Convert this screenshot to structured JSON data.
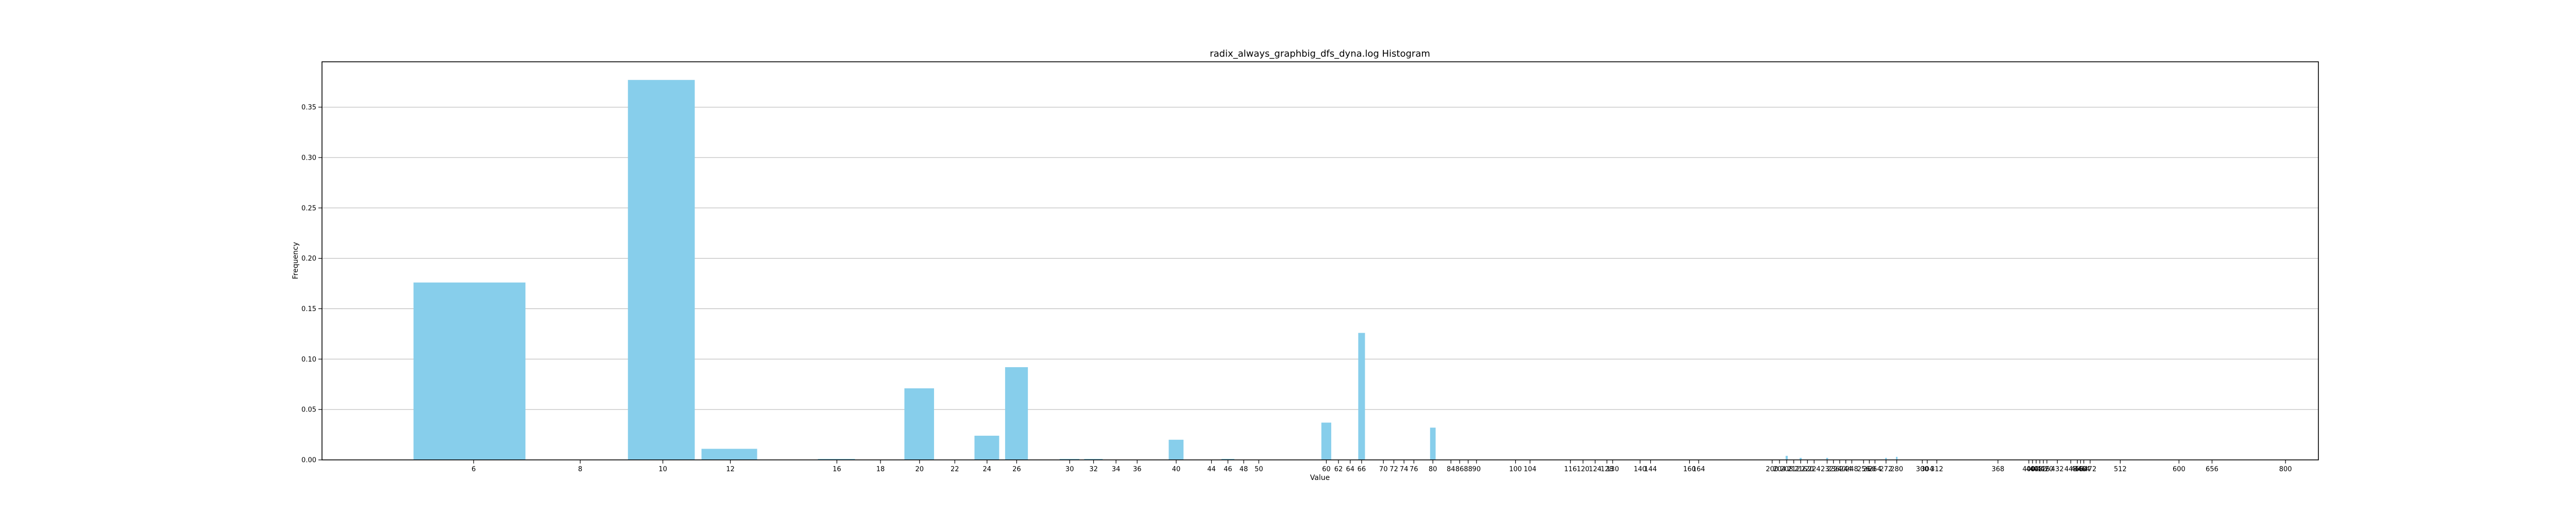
{
  "chart_data": {
    "type": "bar",
    "title": "radix_always_graphbig_dfs_dyna.log Histogram",
    "xlabel": "Value",
    "ylabel": "Frequency",
    "ylim": [
      0,
      0.395
    ],
    "xlim_log2": [
      1.994,
      9.772
    ],
    "x_scale": "log2",
    "grid": "horizontal",
    "bar_color": "#87ceeb",
    "yticks": [
      0.0,
      0.05,
      0.1,
      0.15,
      0.2,
      0.25,
      0.3,
      0.35
    ],
    "ytick_labels": [
      "0.00",
      "0.05",
      "0.10",
      "0.15",
      "0.20",
      "0.25",
      "0.30",
      "0.35"
    ],
    "xticks": [
      6,
      8,
      10,
      12,
      16,
      18,
      20,
      22,
      24,
      26,
      30,
      32,
      34,
      36,
      40,
      44,
      46,
      48,
      50,
      60,
      62,
      64,
      66,
      70,
      72,
      74,
      76,
      80,
      84,
      86,
      88,
      90,
      100,
      104,
      116,
      120,
      124,
      128,
      130,
      140,
      144,
      160,
      164,
      200,
      204,
      208,
      212,
      216,
      220,
      224,
      232,
      236,
      240,
      244,
      248,
      256,
      260,
      264,
      272,
      280,
      300,
      304,
      312,
      368,
      400,
      404,
      408,
      412,
      416,
      420,
      432,
      448,
      456,
      460,
      464,
      472,
      512,
      600,
      656,
      800
    ],
    "xtick_labels": [
      "6",
      "8",
      "10",
      "12",
      "16",
      "18",
      "20",
      "22",
      "24",
      "26",
      "30",
      "32",
      "34",
      "36",
      "40",
      "44",
      "46",
      "48",
      "50",
      "60",
      "62",
      "64",
      "66",
      "70",
      "72",
      "74",
      "76",
      "80",
      "84",
      "86",
      "88",
      "90",
      "100",
      "104",
      "116",
      "120",
      "124",
      "128",
      "130",
      "140",
      "144",
      "160",
      "164",
      "200",
      "204",
      "208",
      "212",
      "216",
      "220",
      "224",
      "232",
      "236",
      "240",
      "244",
      "248",
      "256",
      "260",
      "264",
      "272",
      "280",
      "300",
      "304",
      "312",
      "368",
      "400",
      "404",
      "408",
      "412",
      "416",
      "420",
      "432",
      "448",
      "456",
      "460",
      "464",
      "472",
      "512",
      "600",
      "656",
      "800"
    ],
    "bars": [
      {
        "x": 6,
        "y": 0.176
      },
      {
        "x": 10,
        "y": 0.377
      },
      {
        "x": 12,
        "y": 0.011
      },
      {
        "x": 20,
        "y": 0.071
      },
      {
        "x": 24,
        "y": 0.024
      },
      {
        "x": 26,
        "y": 0.092
      },
      {
        "x": 40,
        "y": 0.02
      },
      {
        "x": 60,
        "y": 0.037
      },
      {
        "x": 66,
        "y": 0.126
      },
      {
        "x": 80,
        "y": 0.032
      },
      {
        "x": 16,
        "y": 0.001
      },
      {
        "x": 30,
        "y": 0.001
      },
      {
        "x": 32,
        "y": 0.001
      },
      {
        "x": 46,
        "y": 0.001
      },
      {
        "x": 208,
        "y": 0.004
      },
      {
        "x": 216,
        "y": 0.002
      },
      {
        "x": 232,
        "y": 0.002
      },
      {
        "x": 272,
        "y": 0.002
      },
      {
        "x": 280,
        "y": 0.003
      }
    ]
  }
}
